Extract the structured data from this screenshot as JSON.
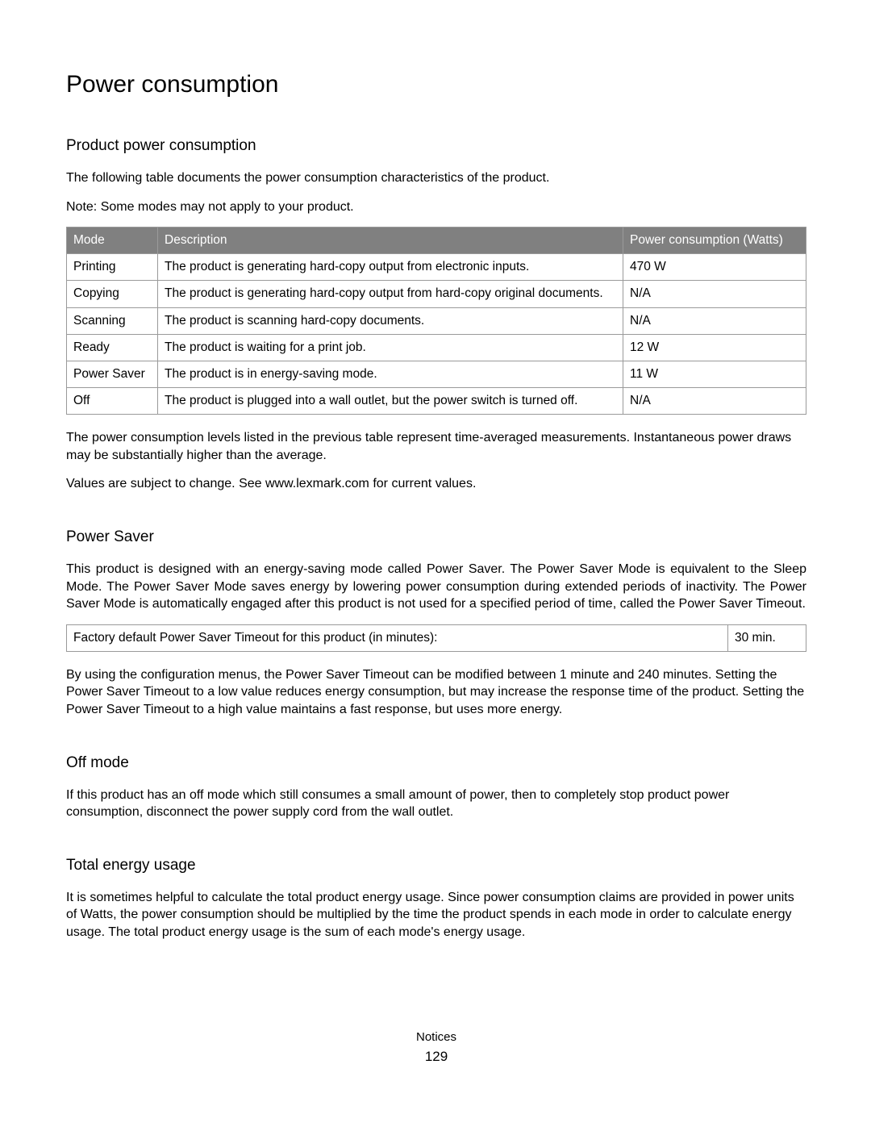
{
  "title": "Power consumption",
  "section_product": {
    "heading": "Product power consumption",
    "intro": "The following table documents the power consumption characteristics of the product.",
    "note": "Note: Some modes may not apply to your product.",
    "after_table_p1": "The power consumption levels listed in the previous table represent time-averaged measurements. Instantaneous power draws may be substantially higher than the average.",
    "after_table_p2": "Values are subject to change. See www.lexmark.com for current values."
  },
  "power_table": {
    "header_bg": "#808080",
    "header_fg": "#ffffff",
    "border_color": "#9a9a9a",
    "columns": [
      "Mode",
      "Description",
      "Power consumption (Watts)"
    ],
    "rows": [
      {
        "mode": "Printing",
        "desc": "The product is generating hard-copy output from electronic inputs.",
        "power": "470 W"
      },
      {
        "mode": "Copying",
        "desc": "The product is generating hard-copy output from hard-copy original documents.",
        "power": "N/A"
      },
      {
        "mode": "Scanning",
        "desc": "The product is scanning hard-copy documents.",
        "power": "N/A"
      },
      {
        "mode": "Ready",
        "desc": "The product is waiting for a print job.",
        "power": "12 W"
      },
      {
        "mode": "Power Saver",
        "desc": "The product is in energy-saving mode.",
        "power": "11 W"
      },
      {
        "mode": "Off",
        "desc": "The product is plugged into a wall outlet, but the power switch is turned off.",
        "power": "N/A"
      }
    ]
  },
  "section_power_saver": {
    "heading": "Power Saver",
    "p1": "This product is designed with an energy-saving mode called Power Saver. The Power Saver Mode is equivalent to the Sleep Mode. The Power Saver Mode saves energy by lowering power consumption during extended periods of inactivity. The Power Saver Mode is automatically engaged after this product is not used for a specified period of time, called the Power Saver Timeout.",
    "timeout_label": "Factory default Power Saver Timeout for this product (in minutes):",
    "timeout_value": "30 min.",
    "p2": "By using the configuration menus, the Power Saver Timeout can be modified between 1 minute and 240 minutes. Setting the Power Saver Timeout to a low value reduces energy consumption, but may increase the response time of the product. Setting the Power Saver Timeout to a high value maintains a fast response, but uses more energy."
  },
  "section_off_mode": {
    "heading": "Off mode",
    "p1": "If this product has an off mode which still consumes a small amount of power, then to completely stop product power consumption, disconnect the power supply cord from the wall outlet."
  },
  "section_total": {
    "heading": "Total energy usage",
    "p1": "It is sometimes helpful to calculate the total product energy usage. Since power consumption claims are provided in power units of Watts, the power consumption should be multiplied by the time the product spends in each mode in order to calculate energy usage. The total product energy usage is the sum of each mode's energy usage."
  },
  "footer": {
    "section_label": "Notices",
    "page_number": "129"
  }
}
